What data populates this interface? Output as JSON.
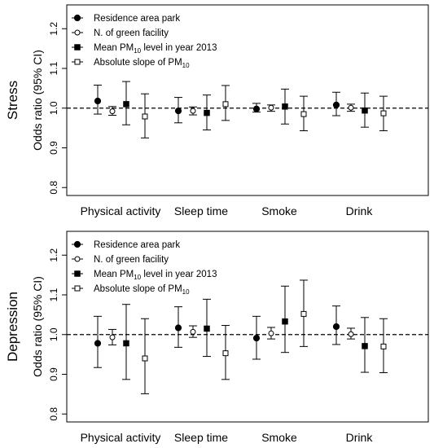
{
  "chart_data": [
    {
      "type": "errorbar",
      "row_label": "Stress",
      "ylabel": "Odds ratio (95% CI)",
      "ylim": [
        0.78,
        1.26
      ],
      "yticks": [
        "0.8",
        "0.9",
        "1.0",
        "1.1",
        "1.2"
      ],
      "reference_line": 1.0,
      "categories": [
        "Physical activity",
        "Sleep time",
        "Smoke",
        "Drink"
      ],
      "legend": {
        "position": "top-left",
        "entries": [
          {
            "label": "Residence area park",
            "marker": "filled-circle"
          },
          {
            "label": "N. of green facility",
            "marker": "open-circle"
          },
          {
            "label": "Mean PM",
            "sub": "10",
            "after": " level in year 2013",
            "marker": "filled-square"
          },
          {
            "label": "Absolute slope of PM",
            "sub": "10",
            "after": "",
            "marker": "open-square"
          }
        ]
      },
      "series": [
        {
          "marker": "filled-circle",
          "estimates": [
            1.018,
            0.993,
            0.998,
            1.008
          ],
          "lower": [
            0.985,
            0.963,
            0.99,
            0.981
          ],
          "upper": [
            1.058,
            1.027,
            1.012,
            1.04
          ]
        },
        {
          "marker": "open-circle",
          "estimates": [
            0.992,
            0.993,
            1.001,
            1.001
          ],
          "lower": [
            0.982,
            0.983,
            0.992,
            0.992
          ],
          "upper": [
            1.004,
            1.003,
            1.008,
            1.01
          ]
        },
        {
          "marker": "filled-square",
          "estimates": [
            1.01,
            0.988,
            1.004,
            0.994
          ],
          "lower": [
            0.958,
            0.945,
            0.96,
            0.952
          ],
          "upper": [
            1.067,
            1.033,
            1.048,
            1.038
          ]
        },
        {
          "marker": "open-square",
          "estimates": [
            0.979,
            1.01,
            0.985,
            0.987
          ],
          "lower": [
            0.925,
            0.969,
            0.943,
            0.943
          ],
          "upper": [
            1.036,
            1.057,
            1.03,
            1.03
          ]
        }
      ]
    },
    {
      "type": "errorbar",
      "row_label": "Depression",
      "ylabel": "Odds ratio (95% CI)",
      "ylim": [
        0.78,
        1.26
      ],
      "yticks": [
        "0.8",
        "0.9",
        "1.0",
        "1.1",
        "1.2"
      ],
      "reference_line": 1.0,
      "categories": [
        "Physical activity",
        "Sleep time",
        "Smoke",
        "Drink"
      ],
      "legend": {
        "position": "top-left",
        "entries": [
          {
            "label": "Residence area park",
            "marker": "filled-circle"
          },
          {
            "label": "N. of green facility",
            "marker": "open-circle"
          },
          {
            "label": "Mean PM",
            "sub": "10",
            "after": " level in year 2013",
            "marker": "filled-square"
          },
          {
            "label": "Absolute slope of PM",
            "sub": "10",
            "after": "",
            "marker": "open-square"
          }
        ]
      },
      "series": [
        {
          "marker": "filled-circle",
          "estimates": [
            0.978,
            1.017,
            0.991,
            1.02
          ],
          "lower": [
            0.917,
            0.968,
            0.938,
            0.975
          ],
          "upper": [
            1.046,
            1.07,
            1.046,
            1.072
          ]
        },
        {
          "marker": "open-circle",
          "estimates": [
            0.993,
            1.007,
            1.003,
            1.001
          ],
          "lower": [
            0.974,
            0.993,
            0.989,
            0.989
          ],
          "upper": [
            1.013,
            1.022,
            1.018,
            1.016
          ]
        },
        {
          "marker": "filled-square",
          "estimates": [
            0.978,
            1.015,
            1.033,
            0.971
          ],
          "lower": [
            0.887,
            0.945,
            0.955,
            0.905
          ],
          "upper": [
            1.076,
            1.089,
            1.122,
            1.043
          ]
        },
        {
          "marker": "open-square",
          "estimates": [
            0.94,
            0.953,
            1.052,
            0.97
          ],
          "lower": [
            0.851,
            0.887,
            0.97,
            0.904
          ],
          "upper": [
            1.04,
            1.023,
            1.137,
            1.04
          ]
        }
      ]
    }
  ]
}
